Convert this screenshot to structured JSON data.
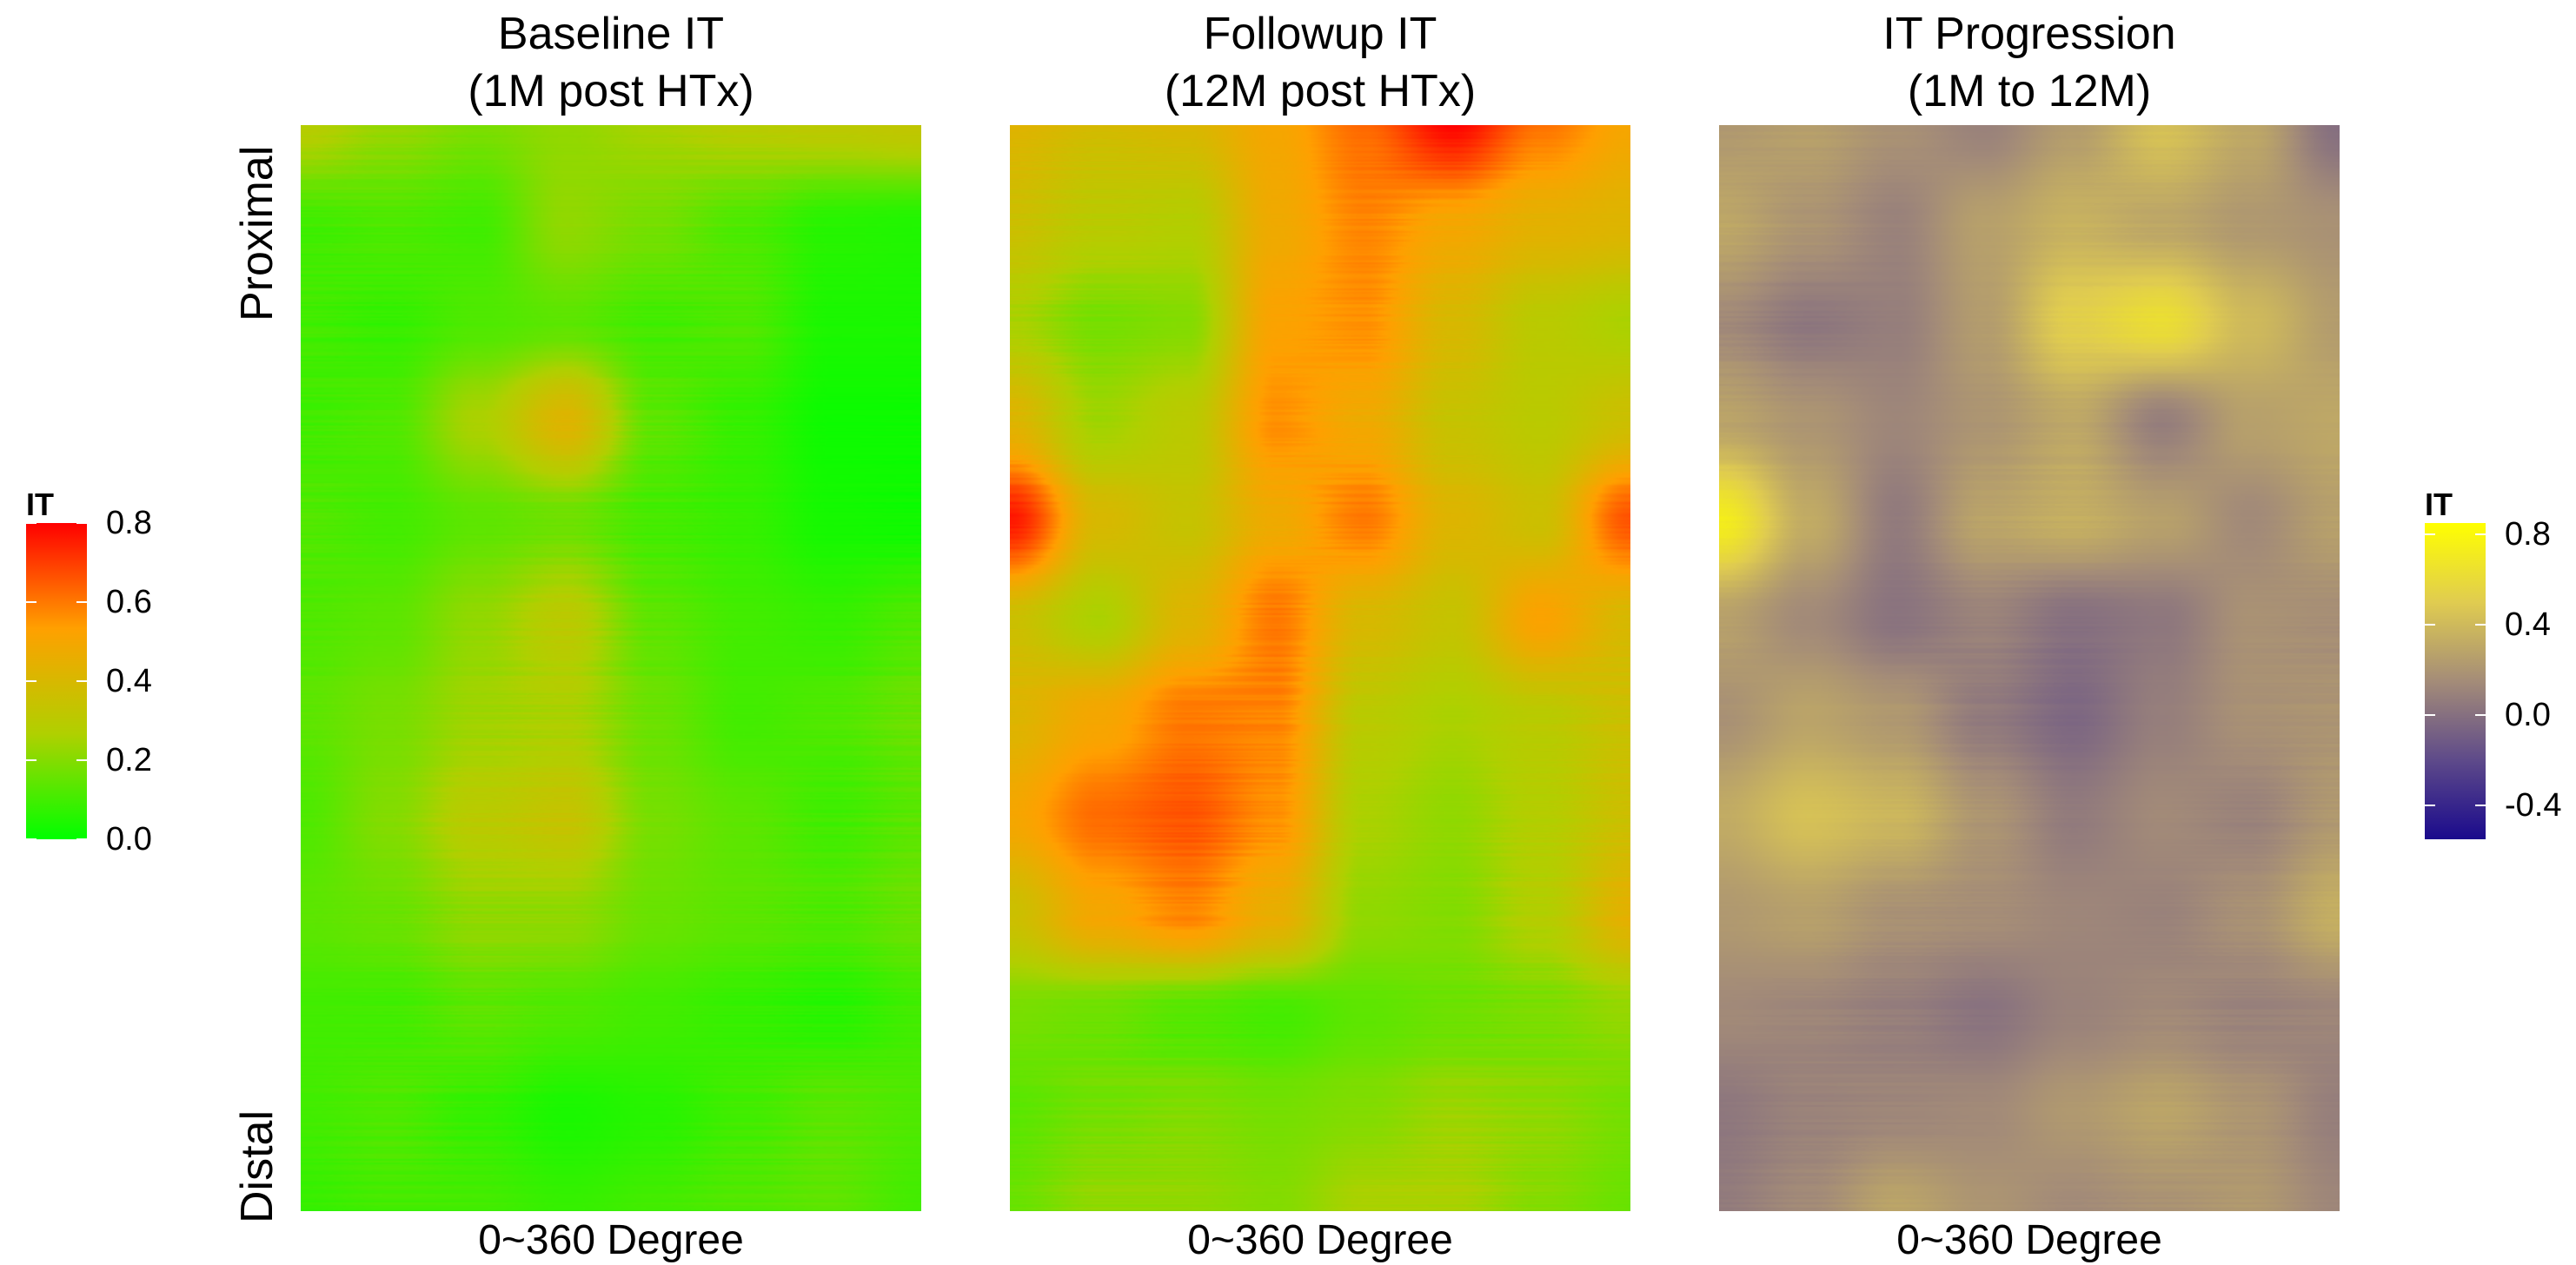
{
  "chart_data": [
    {
      "type": "heatmap",
      "title": "Baseline IT\n(1M post HTx)",
      "title_lines": [
        "Baseline IT",
        "(1M post HTx)"
      ],
      "xlabel": "0~360 Degree",
      "ylabel_top": "Proximal",
      "ylabel_bottom": "Distal",
      "legend": "IT",
      "colorscale": "green-red",
      "grid_rows": 12,
      "grid_cols": 8,
      "z": [
        [
          0.28,
          0.22,
          0.18,
          0.22,
          0.25,
          0.28,
          0.3,
          0.32
        ],
        [
          0.1,
          0.12,
          0.1,
          0.22,
          0.18,
          0.12,
          0.06,
          0.05
        ],
        [
          0.1,
          0.08,
          0.12,
          0.14,
          0.1,
          0.12,
          0.04,
          0.04
        ],
        [
          0.1,
          0.12,
          0.26,
          0.42,
          0.14,
          0.08,
          0.02,
          0.02
        ],
        [
          0.12,
          0.1,
          0.14,
          0.16,
          0.1,
          0.08,
          0.03,
          0.02
        ],
        [
          0.12,
          0.14,
          0.22,
          0.3,
          0.14,
          0.1,
          0.08,
          0.12
        ],
        [
          0.14,
          0.18,
          0.24,
          0.26,
          0.16,
          0.1,
          0.12,
          0.16
        ],
        [
          0.12,
          0.2,
          0.3,
          0.34,
          0.18,
          0.14,
          0.1,
          0.14
        ],
        [
          0.14,
          0.16,
          0.22,
          0.22,
          0.16,
          0.14,
          0.12,
          0.16
        ],
        [
          0.1,
          0.1,
          0.14,
          0.12,
          0.1,
          0.08,
          0.06,
          0.1
        ],
        [
          0.1,
          0.12,
          0.08,
          0.04,
          0.06,
          0.1,
          0.14,
          0.12
        ],
        [
          0.08,
          0.1,
          0.1,
          0.08,
          0.1,
          0.12,
          0.14,
          0.1
        ]
      ],
      "zlim": [
        0,
        0.8
      ]
    },
    {
      "type": "heatmap",
      "title": "Followup IT\n(12M post HTx)",
      "title_lines": [
        "Followup IT",
        "(12M post HTx)"
      ],
      "xlabel": "0~360 Degree",
      "legend": "IT",
      "colorscale": "green-red",
      "grid_rows": 12,
      "grid_cols": 8,
      "z": [
        [
          0.42,
          0.38,
          0.4,
          0.5,
          0.62,
          0.78,
          0.6,
          0.5
        ],
        [
          0.36,
          0.3,
          0.28,
          0.48,
          0.58,
          0.5,
          0.44,
          0.42
        ],
        [
          0.26,
          0.18,
          0.2,
          0.52,
          0.56,
          0.4,
          0.3,
          0.26
        ],
        [
          0.42,
          0.24,
          0.3,
          0.56,
          0.48,
          0.34,
          0.3,
          0.36
        ],
        [
          0.76,
          0.4,
          0.34,
          0.48,
          0.6,
          0.42,
          0.36,
          0.66
        ],
        [
          0.36,
          0.26,
          0.42,
          0.6,
          0.4,
          0.34,
          0.52,
          0.4
        ],
        [
          0.42,
          0.5,
          0.6,
          0.58,
          0.3,
          0.26,
          0.3,
          0.36
        ],
        [
          0.5,
          0.62,
          0.66,
          0.56,
          0.26,
          0.22,
          0.28,
          0.36
        ],
        [
          0.36,
          0.5,
          0.58,
          0.46,
          0.22,
          0.2,
          0.28,
          0.44
        ],
        [
          0.18,
          0.16,
          0.12,
          0.1,
          0.14,
          0.16,
          0.18,
          0.22
        ],
        [
          0.14,
          0.18,
          0.2,
          0.18,
          0.2,
          0.24,
          0.22,
          0.18
        ],
        [
          0.16,
          0.22,
          0.22,
          0.2,
          0.26,
          0.26,
          0.2,
          0.16
        ]
      ],
      "zlim": [
        0,
        0.8
      ]
    },
    {
      "type": "heatmap",
      "title": "IT Progression\n(1M to 12M)",
      "title_lines": [
        "IT Progression",
        "(1M to 12M)"
      ],
      "xlabel": "0~360 Degree",
      "legend": "IT",
      "colorscale": "purple-yellow",
      "grid_rows": 12,
      "grid_cols": 8,
      "z": [
        [
          0.22,
          0.26,
          0.18,
          0.1,
          0.24,
          0.44,
          0.3,
          0.0
        ],
        [
          0.3,
          0.2,
          0.1,
          0.26,
          0.36,
          0.3,
          0.22,
          0.18
        ],
        [
          0.14,
          0.04,
          0.08,
          0.24,
          0.52,
          0.62,
          0.4,
          0.24
        ],
        [
          0.28,
          0.2,
          0.12,
          0.2,
          0.3,
          0.08,
          0.26,
          0.3
        ],
        [
          0.72,
          0.32,
          0.06,
          0.28,
          0.34,
          0.26,
          0.14,
          0.26
        ],
        [
          0.26,
          0.14,
          0.02,
          0.1,
          0.0,
          0.04,
          0.18,
          0.16
        ],
        [
          0.18,
          0.28,
          0.22,
          0.06,
          -0.04,
          0.08,
          0.18,
          0.2
        ],
        [
          0.32,
          0.44,
          0.38,
          0.2,
          0.06,
          0.14,
          0.1,
          0.22
        ],
        [
          0.22,
          0.26,
          0.18,
          0.16,
          0.12,
          0.1,
          0.18,
          0.34
        ],
        [
          0.14,
          0.12,
          0.08,
          0.02,
          0.1,
          0.14,
          0.1,
          0.12
        ],
        [
          0.04,
          0.1,
          0.12,
          0.14,
          0.22,
          0.28,
          0.2,
          0.08
        ],
        [
          0.06,
          0.14,
          0.28,
          0.2,
          0.14,
          0.18,
          0.22,
          0.12
        ]
      ],
      "zlim": [
        -0.55,
        0.85
      ]
    }
  ],
  "legends": [
    {
      "title": "IT",
      "ticks": [
        {
          "value": 0.8,
          "label": "0.8"
        },
        {
          "value": 0.6,
          "label": "0.6"
        },
        {
          "value": 0.4,
          "label": "0.4"
        },
        {
          "value": 0.2,
          "label": "0.2"
        },
        {
          "value": 0.0,
          "label": "0.0"
        }
      ],
      "min": 0.0,
      "max": 0.8,
      "colors": [
        "#00ff00",
        "#b0d000",
        "#ffa000",
        "#ff0000"
      ]
    },
    {
      "title": "IT",
      "ticks": [
        {
          "value": 0.8,
          "label": "0.8"
        },
        {
          "value": 0.4,
          "label": "0.4"
        },
        {
          "value": 0.0,
          "label": "0.0"
        },
        {
          "value": -0.4,
          "label": "-0.4"
        }
      ],
      "min": -0.55,
      "max": 0.85,
      "colors": [
        "#1a0a8c",
        "#5e4a8a",
        "#a48c78",
        "#e0cc50",
        "#ffff00"
      ]
    }
  ]
}
